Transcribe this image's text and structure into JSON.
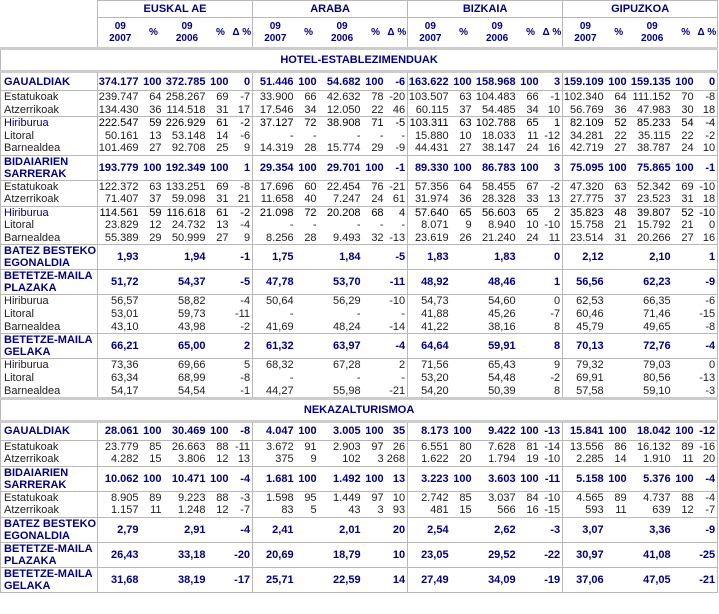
{
  "table": {
    "regions": [
      "EUSKAL AE",
      "ARABA",
      "BIZKAIA",
      "GIPUZKOA"
    ],
    "subcols": [
      "09\n2007",
      "%",
      "09\n2006",
      "%",
      "Δ %"
    ],
    "sections": [
      {
        "title": "HOTEL-ESTABLEZIMENDUAK",
        "rows": [
          {
            "label": "GAUALDIAK",
            "kind": "h",
            "values": [
              "374.177",
              "100",
              "372.785",
              "100",
              "0",
              "51.446",
              "100",
              "54.682",
              "100",
              "-6",
              "163.622",
              "100",
              "158.968",
              "100",
              "3",
              "159.109",
              "100",
              "159.135",
              "100",
              "0"
            ]
          },
          {
            "label": "Estatukoak",
            "kind": "s",
            "values": [
              "239.747",
              "64",
              "258.267",
              "69",
              "-7",
              "33.900",
              "66",
              "42.632",
              "78",
              "-20",
              "103.507",
              "63",
              "104.483",
              "66",
              "-1",
              "102.340",
              "64",
              "111.152",
              "70",
              "-8"
            ]
          },
          {
            "label": "Atzerrikoak",
            "kind": "s",
            "values": [
              "134.430",
              "36",
              "114.518",
              "31",
              "17",
              "17.546",
              "34",
              "12.050",
              "22",
              "46",
              "60.115",
              "37",
              "54.485",
              "34",
              "10",
              "56.769",
              "36",
              "47.983",
              "30",
              "18"
            ]
          },
          {
            "label": "Hiriburua",
            "kind": "st",
            "values": [
              "222.547",
              "59",
              "226.929",
              "61",
              "-2",
              "37.127",
              "72",
              "38.908",
              "71",
              "-5",
              "103.311",
              "63",
              "102.788",
              "65",
              "1",
              "82.109",
              "52",
              "85.233",
              "54",
              "-4"
            ]
          },
          {
            "label": "Litoral",
            "kind": "s",
            "values": [
              "50.161",
              "13",
              "53.148",
              "14",
              "-6",
              "-",
              "-",
              "-",
              "-",
              "-",
              "15.880",
              "10",
              "18.033",
              "11",
              "-12",
              "34.281",
              "22",
              "35.115",
              "22",
              "-2"
            ]
          },
          {
            "label": "Barnealdea",
            "kind": "s",
            "values": [
              "101.469",
              "27",
              "92.708",
              "25",
              "9",
              "14.319",
              "28",
              "15.774",
              "29",
              "-9",
              "44.431",
              "27",
              "38.147",
              "24",
              "16",
              "42.719",
              "27",
              "38.787",
              "24",
              "10"
            ]
          },
          {
            "label": "BIDAIARIEN SARRERAK",
            "kind": "h",
            "values": [
              "193.779",
              "100",
              "192.349",
              "100",
              "1",
              "29.354",
              "100",
              "29.701",
              "100",
              "-1",
              "89.330",
              "100",
              "86.783",
              "100",
              "3",
              "75.095",
              "100",
              "75.865",
              "100",
              "-1"
            ]
          },
          {
            "label": "Estatukoak",
            "kind": "s",
            "values": [
              "122.372",
              "63",
              "133.251",
              "69",
              "-8",
              "17.696",
              "60",
              "22.454",
              "76",
              "-21",
              "57.356",
              "64",
              "58.455",
              "67",
              "-2",
              "47.320",
              "63",
              "52.342",
              "69",
              "-10"
            ]
          },
          {
            "label": "Atzerrikoak",
            "kind": "s",
            "values": [
              "71.407",
              "37",
              "59.098",
              "31",
              "21",
              "11.658",
              "40",
              "7.247",
              "24",
              "61",
              "31.974",
              "36",
              "28.328",
              "33",
              "13",
              "27.775",
              "37",
              "23.523",
              "31",
              "18"
            ]
          },
          {
            "label": "Hiriburua",
            "kind": "st",
            "values": [
              "114.561",
              "59",
              "116.618",
              "61",
              "-2",
              "21.098",
              "72",
              "20.208",
              "68",
              "4",
              "57.640",
              "65",
              "56.603",
              "65",
              "2",
              "35.823",
              "48",
              "39.807",
              "52",
              "-10"
            ]
          },
          {
            "label": "Litoral",
            "kind": "s",
            "values": [
              "23.829",
              "12",
              "24.732",
              "13",
              "-4",
              "-",
              "-",
              "-",
              "-",
              "-",
              "8.071",
              "9",
              "8.940",
              "10",
              "-10",
              "15.758",
              "21",
              "15.792",
              "21",
              "0"
            ]
          },
          {
            "label": "Barnealdea",
            "kind": "s",
            "values": [
              "55.389",
              "29",
              "50.999",
              "27",
              "9",
              "8.256",
              "28",
              "9.493",
              "32",
              "-13",
              "23.619",
              "26",
              "21.240",
              "24",
              "11",
              "23.514",
              "31",
              "20.266",
              "27",
              "16"
            ]
          },
          {
            "label": "BATEZ BESTEKO EGONALDIA",
            "kind": "h",
            "values": [
              "1,93",
              "",
              "1,94",
              "",
              "-1",
              "1,75",
              "",
              "1,84",
              "",
              "-5",
              "1,83",
              "",
              "1,83",
              "",
              "0",
              "2,12",
              "",
              "2,10",
              "",
              "1"
            ]
          },
          {
            "label": "BETETZE-MAILA PLAZAKA",
            "kind": "h",
            "values": [
              "51,72",
              "",
              "54,37",
              "",
              "-5",
              "47,78",
              "",
              "53,70",
              "",
              "-11",
              "48,92",
              "",
              "48,46",
              "",
              "1",
              "56,56",
              "",
              "62,23",
              "",
              "-9"
            ]
          },
          {
            "label": "Hiriburua",
            "kind": "s",
            "values": [
              "56,57",
              "",
              "58,82",
              "",
              "-4",
              "50,64",
              "",
              "56,29",
              "",
              "-10",
              "54,73",
              "",
              "54,60",
              "",
              "0",
              "62,53",
              "",
              "66,35",
              "",
              "-6"
            ]
          },
          {
            "label": "Litoral",
            "kind": "s",
            "values": [
              "53,01",
              "",
              "59,73",
              "",
              "-11",
              "-",
              "",
              "-",
              "",
              "-",
              "41,88",
              "",
              "45,26",
              "",
              "-7",
              "60,46",
              "",
              "71,46",
              "",
              "-15"
            ]
          },
          {
            "label": "Barnealdea",
            "kind": "s",
            "values": [
              "43,10",
              "",
              "43,98",
              "",
              "-2",
              "41,69",
              "",
              "48,24",
              "",
              "-14",
              "41,22",
              "",
              "38,16",
              "",
              "8",
              "45,79",
              "",
              "49,65",
              "",
              "-8"
            ]
          },
          {
            "label": "BETETZE-MAILA GELAKA",
            "kind": "h",
            "values": [
              "66,21",
              "",
              "65,00",
              "",
              "2",
              "61,32",
              "",
              "63,97",
              "",
              "-4",
              "64,64",
              "",
              "59,91",
              "",
              "8",
              "70,13",
              "",
              "72,76",
              "",
              "-4"
            ]
          },
          {
            "label": "Hiriburua",
            "kind": "s",
            "values": [
              "73,36",
              "",
              "69,66",
              "",
              "5",
              "68,32",
              "",
              "67,28",
              "",
              "2",
              "71,56",
              "",
              "65,43",
              "",
              "9",
              "79,32",
              "",
              "79,03",
              "",
              "0"
            ]
          },
          {
            "label": "Litoral",
            "kind": "s",
            "values": [
              "63,34",
              "",
              "68,99",
              "",
              "-8",
              "-",
              "",
              "-",
              "",
              "-",
              "53,20",
              "",
              "54,48",
              "",
              "-2",
              "69,91",
              "",
              "80,56",
              "",
              "-13"
            ]
          },
          {
            "label": "Barnealdea",
            "kind": "s",
            "values": [
              "54,17",
              "",
              "54,54",
              "",
              "-1",
              "44,27",
              "",
              "55,98",
              "",
              "-21",
              "54,20",
              "",
              "50,39",
              "",
              "8",
              "57,58",
              "",
              "59,10",
              "",
              "-3"
            ]
          }
        ]
      },
      {
        "title": "NEKAZALTURISMOA",
        "rows": [
          {
            "label": "GAUALDIAK",
            "kind": "h",
            "values": [
              "28.061",
              "100",
              "30.469",
              "100",
              "-8",
              "4.047",
              "100",
              "3.005",
              "100",
              "35",
              "8.173",
              "100",
              "9.422",
              "100",
              "-13",
              "15.841",
              "100",
              "18.042",
              "100",
              "-12"
            ]
          },
          {
            "label": "Estatukoak",
            "kind": "s",
            "values": [
              "23.779",
              "85",
              "26.663",
              "88",
              "-11",
              "3.672",
              "91",
              "2.903",
              "97",
              "26",
              "6.551",
              "80",
              "7.628",
              "81",
              "-14",
              "13.556",
              "86",
              "16.132",
              "89",
              "-16"
            ]
          },
          {
            "label": "Atzerrikoak",
            "kind": "s",
            "values": [
              "4.282",
              "15",
              "3.806",
              "12",
              "13",
              "375",
              "9",
              "102",
              "3",
              "268",
              "1.622",
              "20",
              "1.794",
              "19",
              "-10",
              "2.285",
              "14",
              "1.910",
              "11",
              "20"
            ]
          },
          {
            "label": "BIDAIARIEN SARRERAK",
            "kind": "h",
            "values": [
              "10.062",
              "100",
              "10.471",
              "100",
              "-4",
              "1.681",
              "100",
              "1.492",
              "100",
              "13",
              "3.223",
              "100",
              "3.603",
              "100",
              "-11",
              "5.158",
              "100",
              "5.376",
              "100",
              "-4"
            ]
          },
          {
            "label": "Estatukoak",
            "kind": "s",
            "values": [
              "8.905",
              "89",
              "9.223",
              "88",
              "-3",
              "1.598",
              "95",
              "1.449",
              "97",
              "10",
              "2.742",
              "85",
              "3.037",
              "84",
              "-10",
              "4.565",
              "89",
              "4.737",
              "88",
              "-4"
            ]
          },
          {
            "label": "Atzerrikoak",
            "kind": "s",
            "values": [
              "1.157",
              "11",
              "1.248",
              "12",
              "-7",
              "83",
              "5",
              "43",
              "3",
              "93",
              "481",
              "15",
              "566",
              "16",
              "-15",
              "593",
              "11",
              "639",
              "12",
              "-7"
            ]
          },
          {
            "label": "BATEZ BESTEKO EGONALDIA",
            "kind": "h",
            "values": [
              "2,79",
              "",
              "2,91",
              "",
              "-4",
              "2,41",
              "",
              "2,01",
              "",
              "20",
              "2,54",
              "",
              "2,62",
              "",
              "-3",
              "3,07",
              "",
              "3,36",
              "",
              "-9"
            ]
          },
          {
            "label": "BETETZE-MAILA PLAZAKA",
            "kind": "h",
            "values": [
              "26,43",
              "",
              "33,18",
              "",
              "-20",
              "20,69",
              "",
              "18,79",
              "",
              "10",
              "23,05",
              "",
              "29,52",
              "",
              "-22",
              "30,97",
              "",
              "41,08",
              "",
              "-25"
            ]
          },
          {
            "label": "BETETZE-MAILA GELAKA",
            "kind": "h",
            "values": [
              "31,68",
              "",
              "38,19",
              "",
              "-17",
              "25,71",
              "",
              "22,59",
              "",
              "14",
              "27,49",
              "",
              "34,09",
              "",
              "-19",
              "37,06",
              "",
              "47,05",
              "",
              "-21"
            ]
          }
        ]
      }
    ]
  }
}
